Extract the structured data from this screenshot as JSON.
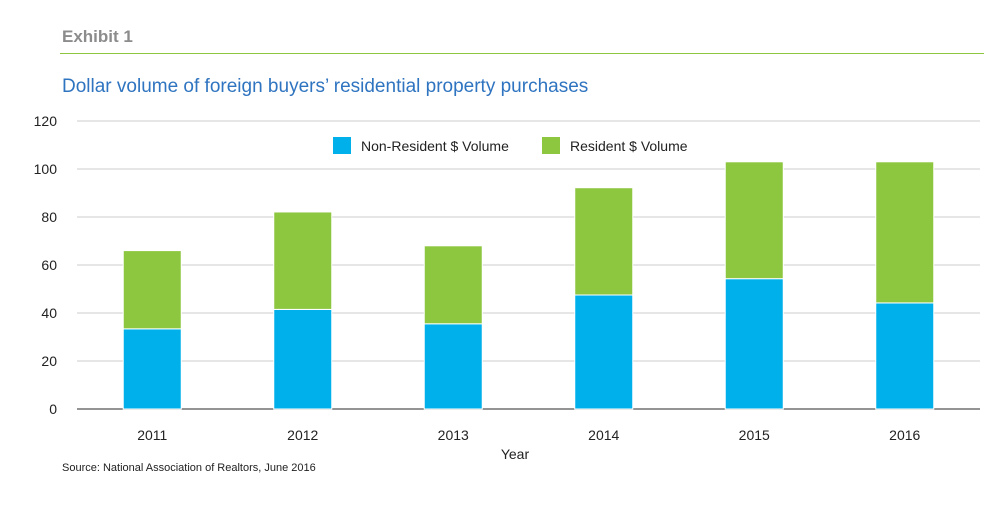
{
  "exhibit_label": "Exhibit 1",
  "source": "Source: National Association of Realtors, June 2016",
  "colors": {
    "non_resident": "#00b0ea",
    "resident": "#8dc63f",
    "title": "#2f74c0",
    "rule": "#8dc63f"
  },
  "chart_data": {
    "type": "bar",
    "stacked": true,
    "title": "Dollar volume of foreign buyers’ residential property purchases",
    "xlabel": "Year",
    "ylabel": "",
    "categories": [
      "2011",
      "2012",
      "2013",
      "2014",
      "2015",
      "2016"
    ],
    "series": [
      {
        "name": "Non-Resident  $ Volume",
        "values": [
          33.4,
          41.5,
          35.5,
          47.5,
          54.3,
          44.2
        ]
      },
      {
        "name": "Resident  $ Volume",
        "values": [
          32.6,
          40.6,
          32.5,
          44.7,
          48.7,
          58.8
        ]
      }
    ],
    "ylim": [
      0,
      120
    ],
    "yticks": [
      0,
      20,
      40,
      60,
      80,
      100,
      120
    ],
    "grid": true,
    "legend_position": "top-center"
  }
}
